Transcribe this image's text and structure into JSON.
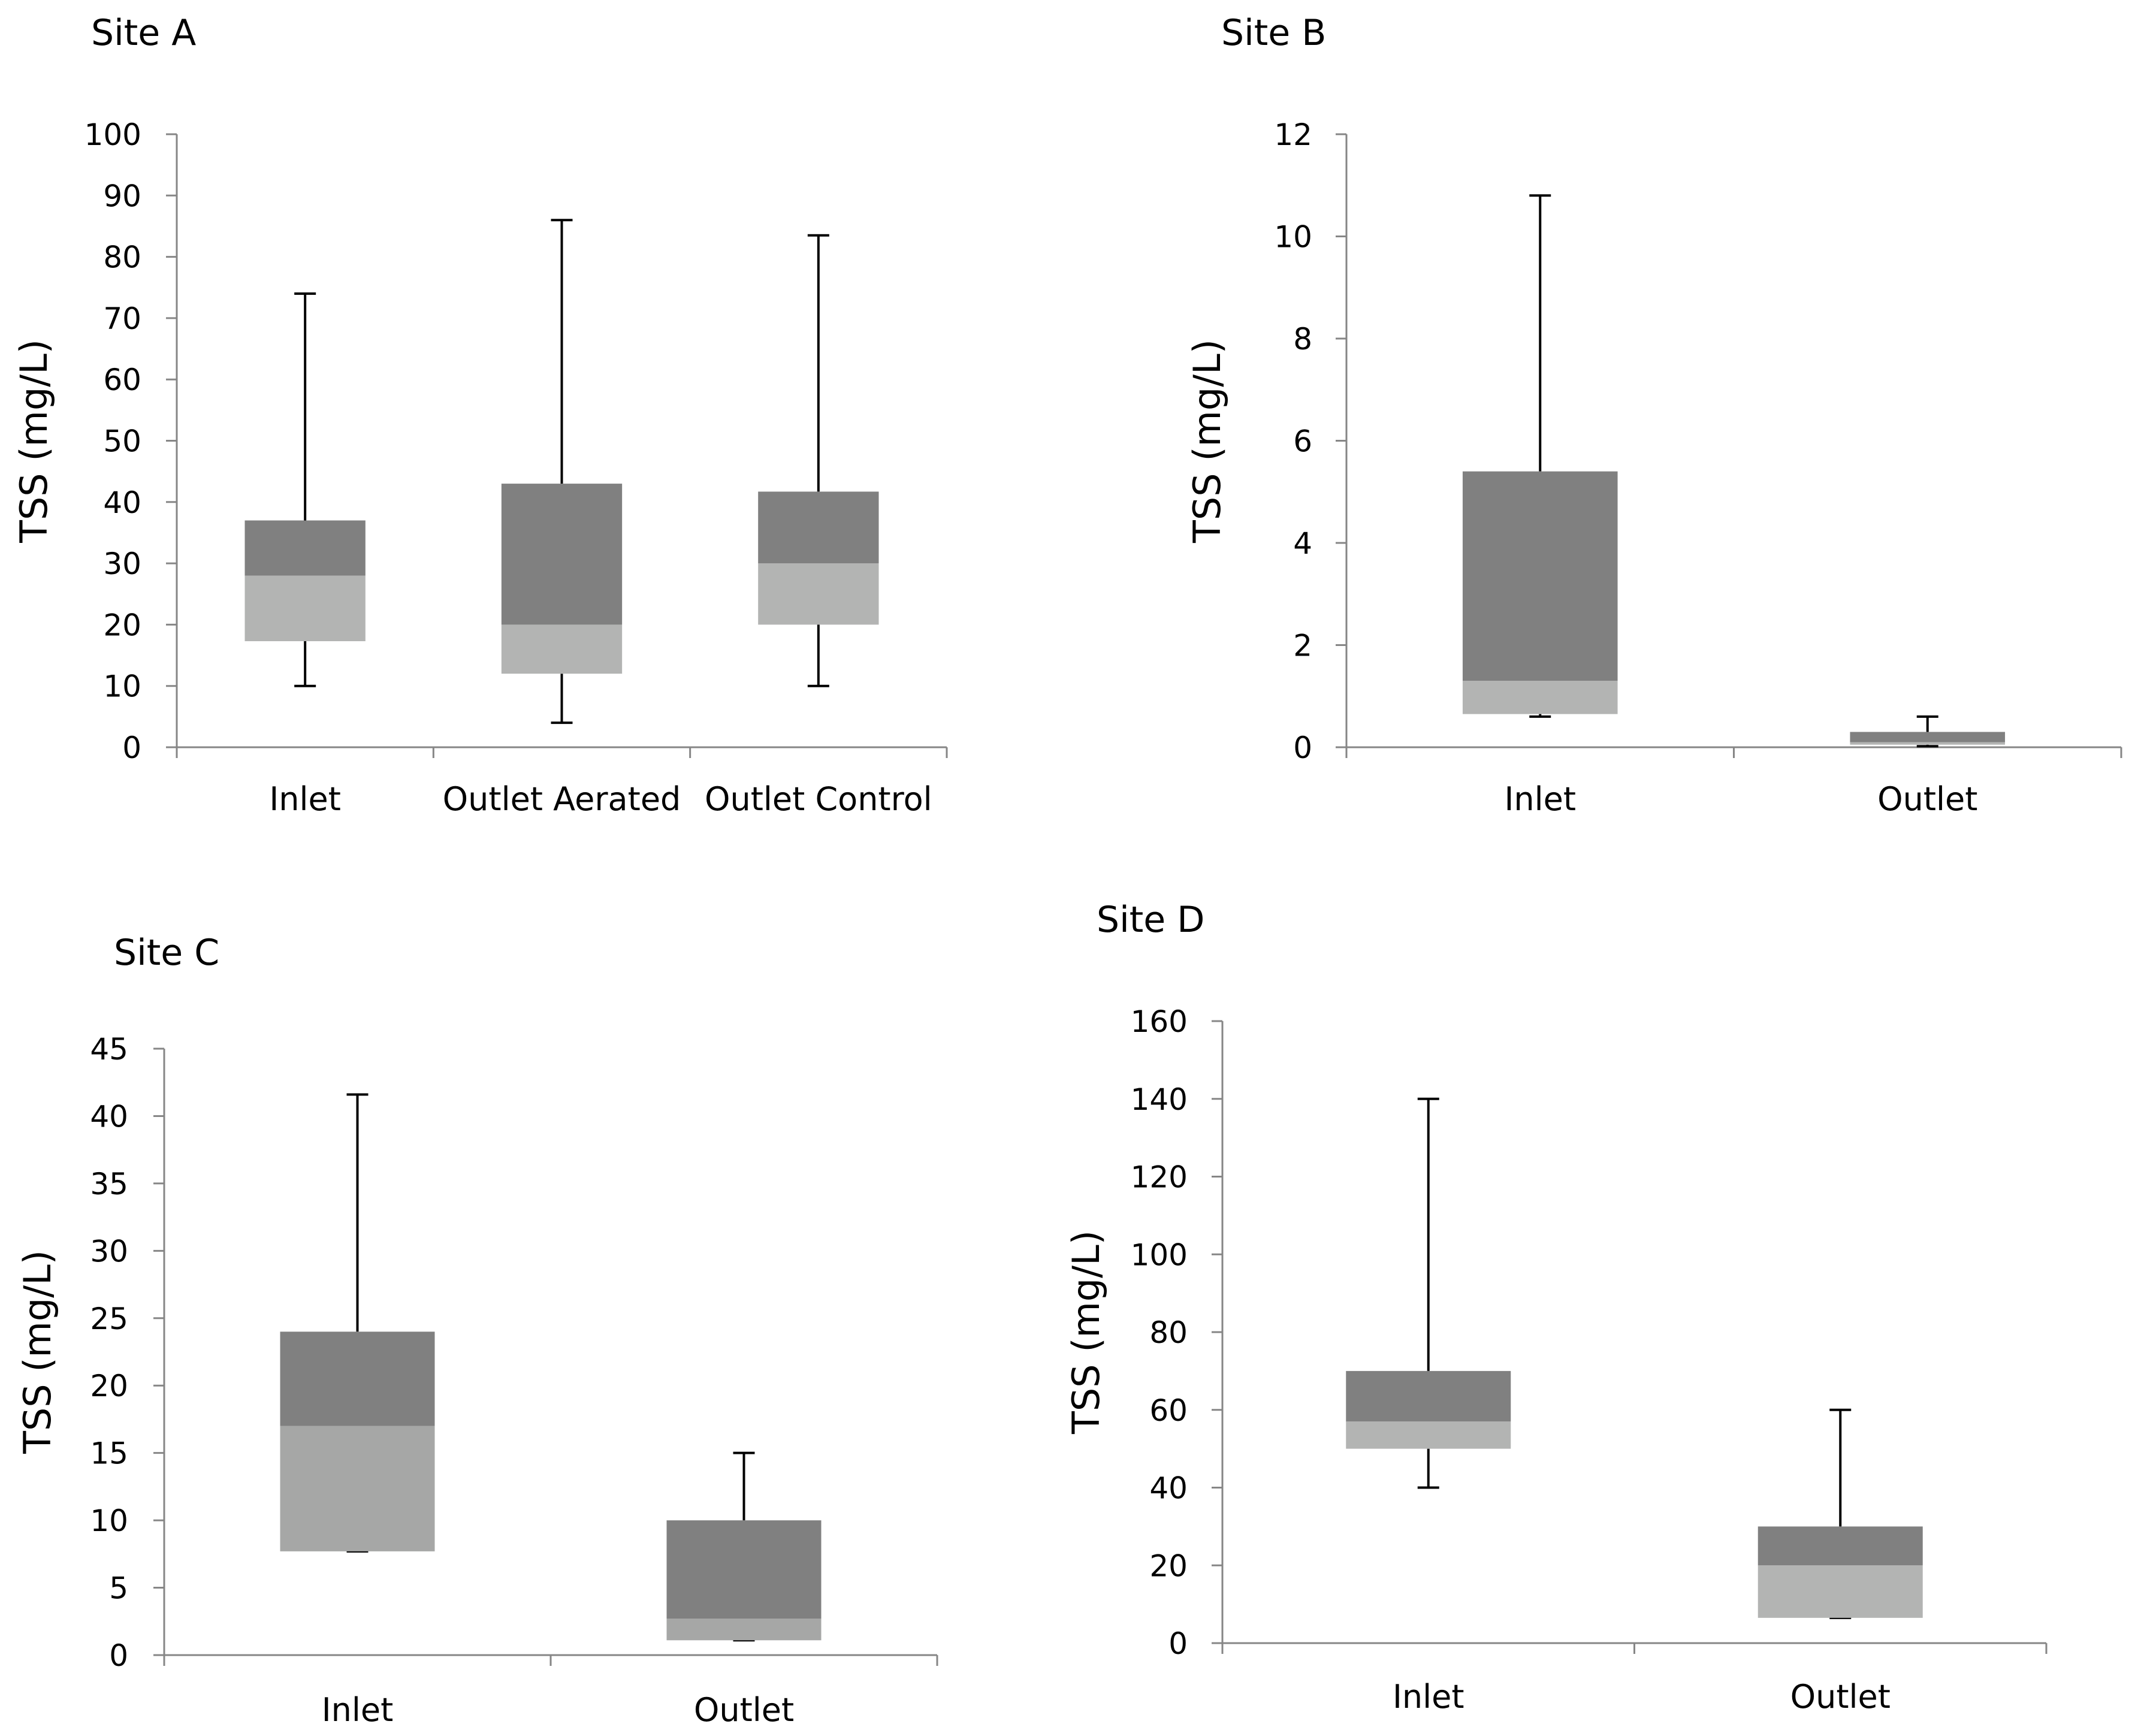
{
  "chart_data": [
    {
      "type": "box",
      "title": "Site A",
      "xlabel": "",
      "ylabel": "TSS (mg/L)",
      "ylim": [
        0,
        100
      ],
      "yticks": [
        0,
        10,
        20,
        30,
        40,
        50,
        60,
        70,
        80,
        90,
        100
      ],
      "categories": [
        "Inlet",
        "Outlet Aerated",
        "Outlet Control"
      ],
      "boxes": [
        {
          "min": 10,
          "q1": 17.3,
          "median": 28,
          "q3": 37,
          "max": 74
        },
        {
          "min": 4,
          "q1": 12,
          "median": 20,
          "q3": 43,
          "max": 86
        },
        {
          "min": 10,
          "q1": 20,
          "median": 30,
          "q3": 41.7,
          "max": 83.5
        }
      ],
      "colors": {
        "upper": "#808080",
        "lower": "#b3b4b3"
      }
    },
    {
      "type": "box",
      "title": "Site B",
      "xlabel": "",
      "ylabel": "TSS (mg/L)",
      "ylim": [
        0,
        12
      ],
      "yticks": [
        0,
        2,
        4,
        6,
        8,
        10,
        12
      ],
      "categories": [
        "Inlet",
        "Outlet"
      ],
      "boxes": [
        {
          "min": 0.6,
          "q1": 0.65,
          "median": 1.3,
          "q3": 5.4,
          "max": 10.8
        },
        {
          "min": 0.02,
          "q1": 0.05,
          "median": 0.1,
          "q3": 0.3,
          "max": 0.6
        }
      ],
      "colors": {
        "upper": "#808080",
        "lower": "#b3b4b3"
      }
    },
    {
      "type": "box",
      "title": "Site C",
      "xlabel": "",
      "ylabel": "TSS (mg/L)",
      "ylim": [
        0,
        45
      ],
      "yticks": [
        0,
        5,
        10,
        15,
        20,
        25,
        30,
        35,
        40,
        45
      ],
      "categories": [
        "Inlet",
        "Outlet"
      ],
      "boxes": [
        {
          "min": 7.7,
          "q1": 7.7,
          "median": 17,
          "q3": 24,
          "max": 41.6
        },
        {
          "min": 1.1,
          "q1": 1.1,
          "median": 2.7,
          "q3": 10,
          "max": 15
        }
      ],
      "colors": {
        "upper": "#808080",
        "lower": "#a6a7a6"
      }
    },
    {
      "type": "box",
      "title": "Site D",
      "xlabel": "",
      "ylabel": "TSS (mg/L)",
      "ylim": [
        0,
        160
      ],
      "yticks": [
        0,
        20,
        40,
        60,
        80,
        100,
        120,
        140,
        160
      ],
      "categories": [
        "Inlet",
        "Outlet"
      ],
      "boxes": [
        {
          "min": 40,
          "q1": 50,
          "median": 57,
          "q3": 70,
          "max": 140
        },
        {
          "min": 6.5,
          "q1": 6.5,
          "median": 20,
          "q3": 30,
          "max": 60
        }
      ],
      "colors": {
        "upper": "#808080",
        "lower": "#b3b4b3"
      }
    }
  ]
}
